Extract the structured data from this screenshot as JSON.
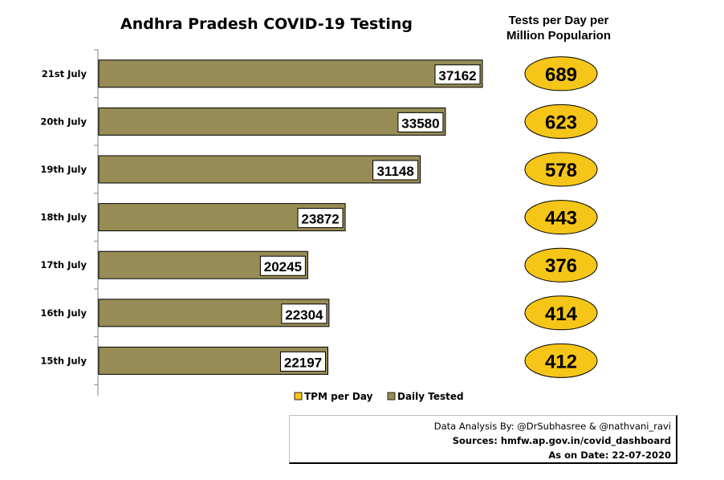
{
  "title": "Andhra Pradesh COVID-19 Testing",
  "tpm_title_line1": "Tests per Day per",
  "tpm_title_line2": "Million Populario​n",
  "source": {
    "analysis": "Data Analysis By: @DrSubhasree & @nathvani_ravi",
    "sources": "Sources: hmfw.ap.gov.in/covid_dashboard",
    "date": "As on Date: 22-07-2020"
  },
  "colors": {
    "daily_tested": "#978c55",
    "tpm": "#f5c518"
  },
  "chart_data": {
    "type": "bar",
    "orientation": "horizontal",
    "categories": [
      "21st July",
      "20th July",
      "19th July",
      "18th July",
      "17th July",
      "16th July",
      "15th July"
    ],
    "series": [
      {
        "name": "Daily Tested",
        "values": [
          37162,
          33580,
          31148,
          23872,
          20245,
          22304,
          22197
        ]
      },
      {
        "name": "TPM per Day",
        "values": [
          689,
          623,
          578,
          443,
          376,
          414,
          412
        ]
      }
    ],
    "xlim": [
      0,
      40000
    ],
    "grid": false,
    "legend": "bottom"
  }
}
